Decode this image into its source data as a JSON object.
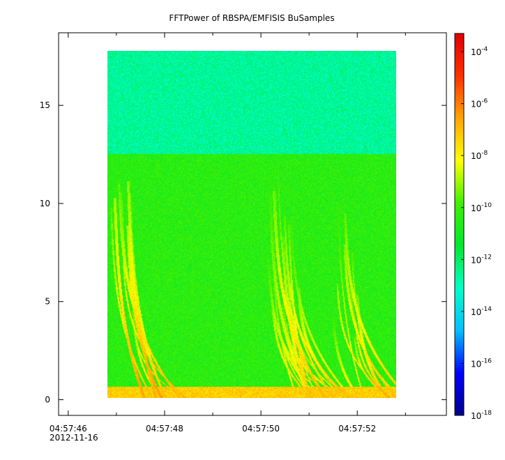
{
  "chart_data": {
    "type": "heatmap",
    "title": "FFTPower of RBSPA/EMFISIS  BuSamples",
    "xlabel": "",
    "ylabel": "",
    "x_ticks": [
      {
        "value": 0,
        "label": "04:57:46",
        "sublabel": "2012-11-16"
      },
      {
        "value": 2,
        "label": "04:57:48"
      },
      {
        "value": 4,
        "label": "04:57:50"
      },
      {
        "value": 6,
        "label": "04:57:52"
      }
    ],
    "x_minor_ticks": [
      1,
      3,
      5,
      7
    ],
    "xlim": [
      -0.2,
      7.85
    ],
    "y_ticks": [
      {
        "value": 0,
        "label": "0"
      },
      {
        "value": 5,
        "label": "5"
      },
      {
        "value": 10,
        "label": "10"
      },
      {
        "value": 15,
        "label": "15"
      }
    ],
    "ylim": [
      -0.8,
      18.7
    ],
    "data_extent": {
      "x": [
        0.9,
        6.85
      ],
      "y": [
        0,
        17.5
      ]
    },
    "background_level_high_band": -12.6,
    "background_level_low_band": -10.4,
    "band_boundary_y": 12.3,
    "bottom_band_level": -7.3,
    "bursts": [
      {
        "x_start": 0.9,
        "x_end": 1.8,
        "strength": -7.0
      },
      {
        "x_start": 4.0,
        "x_end": 5.5,
        "strength": -7.4
      },
      {
        "x_start": 5.5,
        "x_end": 6.3,
        "strength": -7.2
      }
    ],
    "colorbar": {
      "scale": "log",
      "range": [
        -18,
        -3.3
      ],
      "tick_labels": [
        {
          "exp": -4,
          "base": "10",
          "power": "-4"
        },
        {
          "exp": -6,
          "base": "10",
          "power": "-6"
        },
        {
          "exp": -8,
          "base": "10",
          "power": "-8"
        },
        {
          "exp": -10,
          "base": "10",
          "power": "-10"
        },
        {
          "exp": -12,
          "base": "10",
          "power": "-12"
        },
        {
          "exp": -14,
          "base": "10",
          "power": "-14"
        },
        {
          "exp": -16,
          "base": "10",
          "power": "-16"
        },
        {
          "exp": -18,
          "base": "10",
          "power": "-18"
        }
      ],
      "colormap": [
        "#00008b",
        "#0000ff",
        "#00bfff",
        "#00ffc8",
        "#00e830",
        "#40f000",
        "#ffff00",
        "#ffa500",
        "#ff3000",
        "#e00000"
      ]
    },
    "grid": false,
    "legend": "none"
  }
}
